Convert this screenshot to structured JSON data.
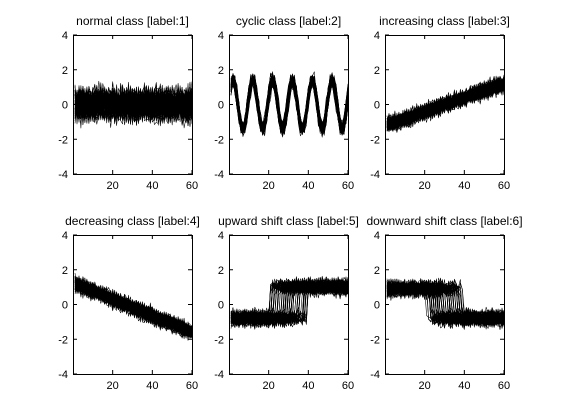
{
  "chart_data": [
    {
      "type": "line",
      "title": "normal class [label:1]",
      "class": "normal",
      "label": 1,
      "x_range": [
        1,
        60
      ],
      "xlim": [
        0,
        60
      ],
      "ylim": [
        -4,
        4
      ],
      "xticks": [
        20,
        40,
        60
      ],
      "yticks": [
        -4,
        -2,
        0,
        2,
        4
      ],
      "noise_band": [
        -1.8,
        1.8
      ],
      "trace_count": 100,
      "grid": false
    },
    {
      "type": "line",
      "title": "cyclic class [label:2]",
      "class": "cyclic",
      "label": 2,
      "x_range": [
        1,
        60
      ],
      "xlim": [
        0,
        60
      ],
      "ylim": [
        -4,
        4
      ],
      "xticks": [
        20,
        40,
        60
      ],
      "yticks": [
        -4,
        -2,
        0,
        2,
        4
      ],
      "amplitude": 1.8,
      "period": 10,
      "trace_count": 100,
      "grid": false
    },
    {
      "type": "line",
      "title": "increasing class [label:3]",
      "class": "increasing",
      "label": 3,
      "x_range": [
        1,
        60
      ],
      "xlim": [
        0,
        60
      ],
      "ylim": [
        -4,
        4
      ],
      "xticks": [
        20,
        40,
        60
      ],
      "yticks": [
        -4,
        -2,
        0,
        2,
        4
      ],
      "trend_start": -1.2,
      "trend_end": 1.2,
      "trace_count": 100,
      "grid": false
    },
    {
      "type": "line",
      "title": "decreasing class [label:4]",
      "class": "decreasing",
      "label": 4,
      "x_range": [
        1,
        60
      ],
      "xlim": [
        0,
        60
      ],
      "ylim": [
        -4,
        4
      ],
      "xticks": [
        20,
        40,
        60
      ],
      "yticks": [
        -4,
        -2,
        0,
        2,
        4
      ],
      "trend_start": 1.2,
      "trend_end": -1.6,
      "trace_count": 100,
      "grid": false
    },
    {
      "type": "line",
      "title": "upward shift class [label:5]",
      "class": "upward shift",
      "label": 5,
      "x_range": [
        1,
        60
      ],
      "xlim": [
        0,
        60
      ],
      "ylim": [
        -4,
        4
      ],
      "xticks": [
        20,
        40,
        60
      ],
      "yticks": [
        -4,
        -2,
        0,
        2,
        4
      ],
      "level_before": -0.8,
      "level_after": 1.0,
      "shift_x_range": [
        20,
        40
      ],
      "trace_count": 100,
      "grid": false
    },
    {
      "type": "line",
      "title": "downward shift class [label:6]",
      "class": "downward shift",
      "label": 6,
      "x_range": [
        1,
        60
      ],
      "xlim": [
        0,
        60
      ],
      "ylim": [
        -4,
        4
      ],
      "xticks": [
        20,
        40,
        60
      ],
      "yticks": [
        -4,
        -2,
        0,
        2,
        4
      ],
      "level_before": 0.9,
      "level_after": -0.8,
      "shift_x_range": [
        20,
        40
      ],
      "trace_count": 100,
      "grid": false
    }
  ]
}
